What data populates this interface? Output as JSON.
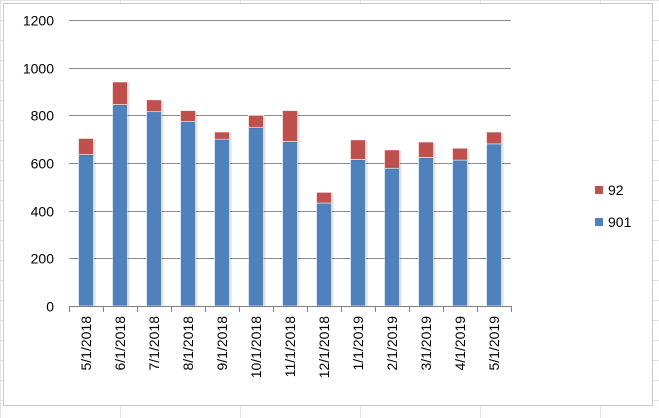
{
  "colors": {
    "series_901": "#4f81bd",
    "series_92": "#c0504d",
    "gridline": "#8c8c8c",
    "sheet_grid": "#e4e4e4"
  },
  "chart_data": {
    "type": "bar",
    "stacked": true,
    "categories": [
      "5/1/2018",
      "6/1/2018",
      "7/1/2018",
      "8/1/2018",
      "9/1/2018",
      "10/1/2018",
      "11/1/2018",
      "12/1/2018",
      "1/1/2019",
      "2/1/2019",
      "3/1/2019",
      "4/1/2019",
      "5/1/2019"
    ],
    "series": [
      {
        "name": "901",
        "values": [
          635,
          845,
          815,
          775,
          700,
          750,
          690,
          432,
          615,
          578,
          623,
          612,
          680
        ]
      },
      {
        "name": "92",
        "values": [
          68,
          95,
          50,
          45,
          30,
          50,
          130,
          45,
          82,
          77,
          65,
          50,
          50
        ]
      }
    ],
    "ylim": [
      0,
      1200
    ],
    "yticks": [
      0,
      200,
      400,
      600,
      800,
      1000,
      1200
    ],
    "xlabel": "",
    "ylabel": "",
    "title": "",
    "grid": true,
    "legend_placement": "right"
  }
}
